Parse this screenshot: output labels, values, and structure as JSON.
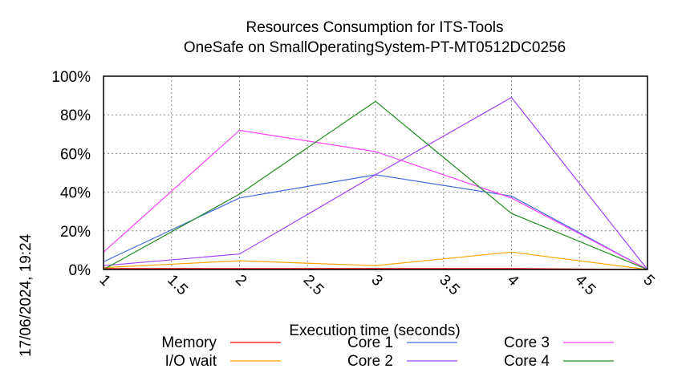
{
  "chart_data": {
    "type": "line",
    "title": "Resources Consumption for ITS-Tools",
    "subtitle": "OneSafe on SmallOperatingSystem-PT-MT0512DC0256",
    "xlabel": "Execution time (seconds)",
    "ylabel": "",
    "side_label": "17/06/2024, 19:24",
    "xlim": [
      1,
      5
    ],
    "ylim": [
      0,
      100
    ],
    "x_ticks": [
      "1",
      "1.5",
      "2",
      "2.5",
      "3",
      "3.5",
      "4",
      "4.5",
      "5"
    ],
    "y_ticks": [
      "0%",
      "20%",
      "40%",
      "60%",
      "80%",
      "100%"
    ],
    "grid": true,
    "legend_position": "bottom",
    "x": [
      1,
      2,
      3,
      4,
      5
    ],
    "series": [
      {
        "name": "Memory",
        "color": "#ff0000",
        "values": [
          0.5,
          0.5,
          0.5,
          0.5,
          0
        ]
      },
      {
        "name": "I/O wait",
        "color": "#ffa500",
        "values": [
          1,
          4.5,
          2,
          9,
          0
        ]
      },
      {
        "name": "Core 1",
        "color": "#4169e1",
        "values": [
          4,
          37,
          49,
          38,
          0
        ]
      },
      {
        "name": "Core 2",
        "color": "#a040ff",
        "values": [
          2,
          8,
          49,
          89,
          0
        ]
      },
      {
        "name": "Core 3",
        "color": "#ff40ff",
        "values": [
          9,
          72,
          61,
          37,
          0
        ]
      },
      {
        "name": "Core 4",
        "color": "#228b22",
        "values": [
          0,
          39,
          87,
          29,
          0
        ]
      }
    ]
  }
}
